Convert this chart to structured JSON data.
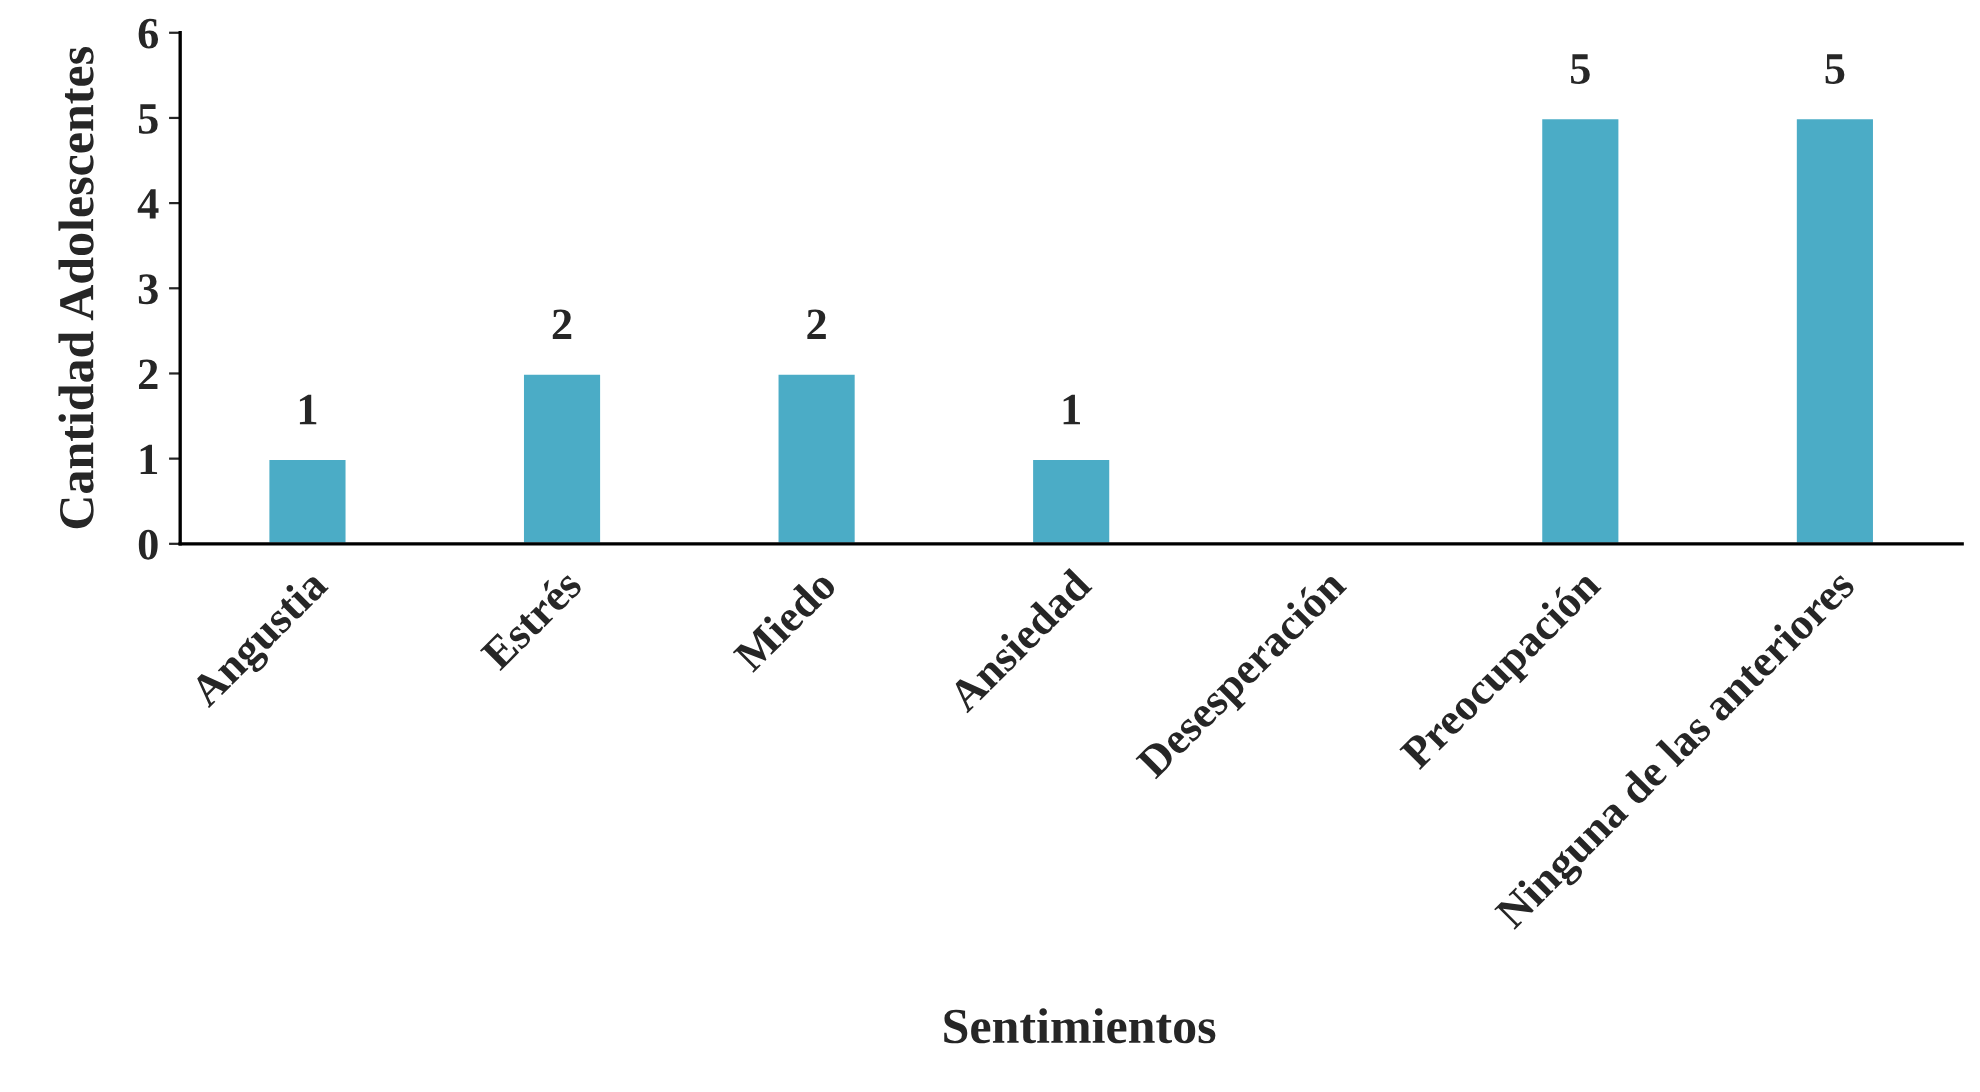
{
  "chart_data": {
    "type": "bar",
    "xlabel": "Sentimientos",
    "ylabel": "Cantidad Adolescentes",
    "categories": [
      "Angustia",
      "Estrés",
      "Miedo",
      "Ansiedad",
      "Desesperación",
      "Preocupación",
      "Ninguna de las anteriores"
    ],
    "values": [
      1,
      2,
      2,
      1,
      0,
      5,
      5
    ],
    "value_labels": [
      "1",
      "2",
      "2",
      "1",
      null,
      "5",
      "5"
    ],
    "color": "#4bacc6",
    "ylim": [
      0,
      6
    ],
    "yticks": [
      0,
      1,
      2,
      3,
      4,
      5,
      6
    ],
    "grid": false
  }
}
